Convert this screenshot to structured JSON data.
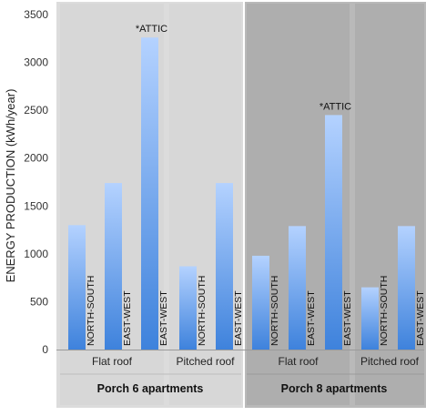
{
  "chart_data": {
    "type": "bar",
    "ylabel": "ENERGY PRODUCTION (kWh/year)",
    "ylim": [
      0,
      3500
    ],
    "yticks": [
      0,
      500,
      1000,
      1500,
      2000,
      2500,
      3000,
      3500
    ],
    "grid": false,
    "groups": [
      {
        "name": "Porch 6 apartments",
        "subgroups": [
          {
            "name": "Flat roof",
            "bars": [
              {
                "label": "NORTH-SOUTH",
                "value": 1300,
                "annotation": ""
              },
              {
                "label": "EAST-WEST",
                "value": 1740,
                "annotation": ""
              },
              {
                "label": "EAST-WEST",
                "value": 3260,
                "annotation": "*ATTIC"
              }
            ]
          },
          {
            "name": "Pitched roof",
            "bars": [
              {
                "label": "NORTH-SOUTH",
                "value": 870,
                "annotation": ""
              },
              {
                "label": "EAST-WEST",
                "value": 1740,
                "annotation": ""
              }
            ]
          }
        ]
      },
      {
        "name": "Porch 8 apartments",
        "subgroups": [
          {
            "name": "Flat roof",
            "bars": [
              {
                "label": "NORTH-SOUTH",
                "value": 980,
                "annotation": ""
              },
              {
                "label": "EAST-WEST",
                "value": 1290,
                "annotation": ""
              },
              {
                "label": "EAST-WEST",
                "value": 2450,
                "annotation": "*ATTIC"
              }
            ]
          },
          {
            "name": "Pitched roof",
            "bars": [
              {
                "label": "NORTH-SOUTH",
                "value": 650,
                "annotation": ""
              },
              {
                "label": "EAST-WEST",
                "value": 1290,
                "annotation": ""
              }
            ]
          }
        ]
      }
    ]
  },
  "colors": {
    "porch6_background": "#dcdcdc",
    "porch8_background": "#b9b9b9",
    "bar_top": "#b4d2ff",
    "bar_bottom": "#3e82dc"
  }
}
